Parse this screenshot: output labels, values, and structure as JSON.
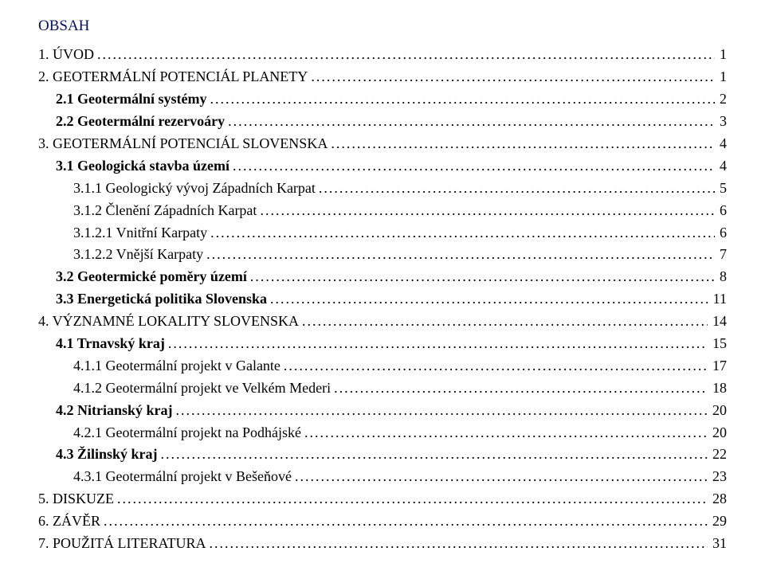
{
  "title": "OBSAH",
  "text_color": "#000000",
  "title_color": "#06125a",
  "background_color": "#ffffff",
  "font_family": "Times New Roman",
  "title_fontsize": 19,
  "body_fontsize": 18,
  "entries": [
    {
      "level": 1,
      "bold": false,
      "label": "1. ÚVOD",
      "page": "1"
    },
    {
      "level": 1,
      "bold": false,
      "label": "2. GEOTERMÁLNÍ POTENCIÁL PLANETY",
      "page": "1"
    },
    {
      "level": 2,
      "bold": true,
      "label": "2.1 Geotermální systémy",
      "page": "2"
    },
    {
      "level": 2,
      "bold": true,
      "label": "2.2 Geotermální rezervoáry",
      "page": "3"
    },
    {
      "level": 1,
      "bold": false,
      "label": "3. GEOTERMÁLNÍ POTENCIÁL SLOVENSKA",
      "page": "4"
    },
    {
      "level": 2,
      "bold": true,
      "label": "3.1 Geologická stavba území",
      "page": "4"
    },
    {
      "level": 3,
      "bold": false,
      "label": "3.1.1 Geologický vývoj Západních Karpat",
      "page": "5"
    },
    {
      "level": 3,
      "bold": false,
      "label": "3.1.2 Členění Západních Karpat",
      "page": "6"
    },
    {
      "level": 3,
      "bold": false,
      "label": "3.1.2.1 Vnitřní Karpaty",
      "page": "6"
    },
    {
      "level": 3,
      "bold": false,
      "label": "3.1.2.2 Vnější Karpaty",
      "page": "7"
    },
    {
      "level": 2,
      "bold": true,
      "label": "3.2 Geotermické poměry území",
      "page": "8"
    },
    {
      "level": 2,
      "bold": true,
      "label": "3.3 Energetická politika Slovenska",
      "page": "11"
    },
    {
      "level": 1,
      "bold": false,
      "label": "4. VÝZNAMNÉ LOKALITY SLOVENSKA",
      "page": "14"
    },
    {
      "level": 2,
      "bold": true,
      "label": "4.1 Trnavský kraj",
      "page": "15"
    },
    {
      "level": 3,
      "bold": false,
      "label": "4.1.1 Geotermální projekt v Galante",
      "page": "17"
    },
    {
      "level": 3,
      "bold": false,
      "label": "4.1.2 Geotermální projekt ve Velkém Mederi",
      "page": "18"
    },
    {
      "level": 2,
      "bold": true,
      "label": "4.2 Nitrianský kraj",
      "page": "20"
    },
    {
      "level": 3,
      "bold": false,
      "label": "4.2.1 Geotermální projekt na Podhájské",
      "page": "20"
    },
    {
      "level": 2,
      "bold": true,
      "label": "4.3 Žilinský kraj",
      "page": "22"
    },
    {
      "level": 3,
      "bold": false,
      "label": "4.3.1 Geotermální projekt v Bešeňové",
      "page": "23"
    },
    {
      "level": 1,
      "bold": false,
      "label": "5. DISKUZE",
      "page": "28"
    },
    {
      "level": 1,
      "bold": false,
      "label": "6. ZÁVĚR",
      "page": "29"
    },
    {
      "level": 1,
      "bold": false,
      "label": "7. POUŽITÁ LITERATURA",
      "page": "31"
    }
  ]
}
